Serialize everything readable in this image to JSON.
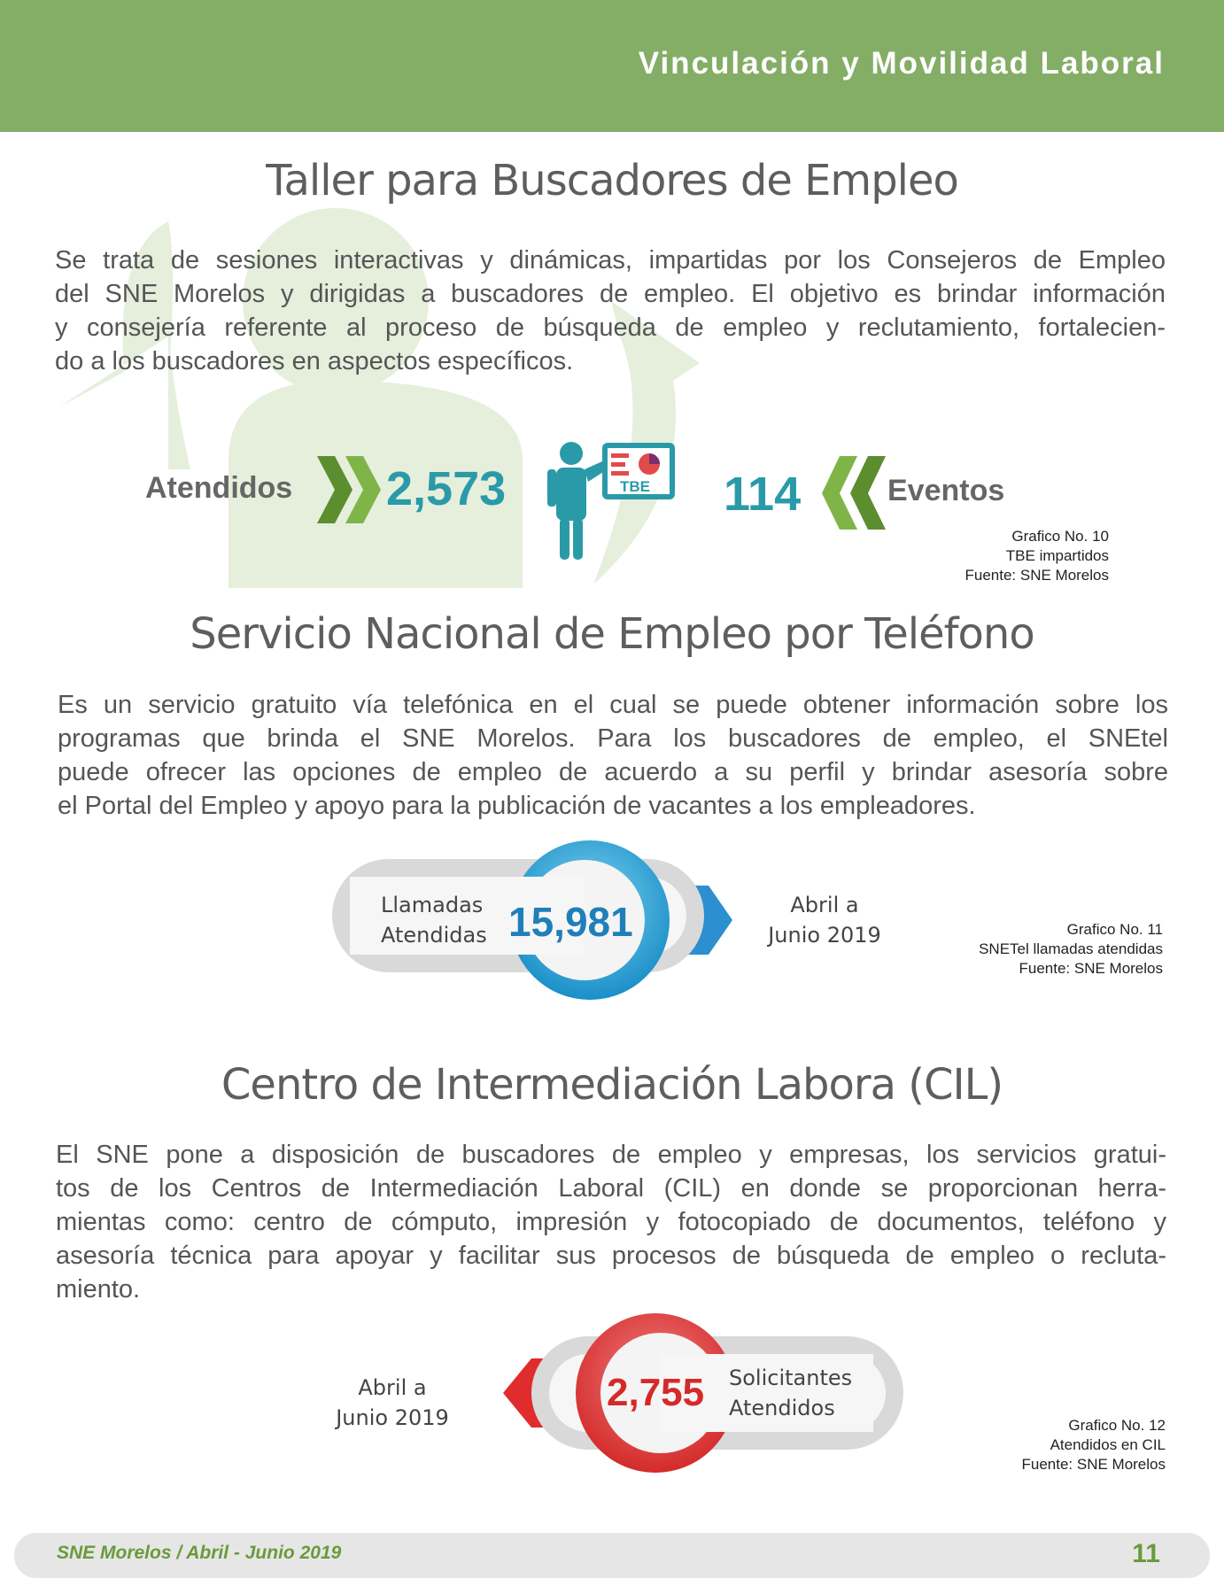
{
  "header": {
    "title": "Vinculación y Movilidad Laboral"
  },
  "section_1": {
    "title": "Taller para Buscadores de Empleo",
    "lines": [
      "Se trata de sesiones interactivas y dinámicas, impartidas por los Consejeros de Empleo",
      "del SNE Morelos y dirigidas a buscadores de empleo. El objetivo es brindar información",
      "y consejería referente al proceso de búsqueda de empleo y  reclutamiento, fortalecien-",
      "do a los buscadores en aspectos específicos."
    ],
    "label_left": "Atendidos",
    "value_left": "2,573",
    "icon_label": "TBE",
    "value_right": "114",
    "label_right": "Eventos",
    "caption": [
      "Grafico No. 10",
      "TBE impartidos",
      "Fuente: SNE Morelos"
    ]
  },
  "section_2": {
    "title": "Servicio Nacional de Empleo por Teléfono",
    "lines": [
      "Es un servicio gratuito vía telefónica en el cual se puede obtener información sobre los",
      "programas que brinda el SNE Morelos. Para los buscadores de empleo, el SNEtel",
      "puede ofrecer las opciones de empleo de acuerdo a su perfil y brindar asesoría sobre",
      "el Portal del Empleo y apoyo para la publicación de vacantes a los empleadores."
    ],
    "label": [
      "Llamadas",
      "Atendidas"
    ],
    "value": "15,981",
    "period": [
      "Abril a",
      "Junio 2019"
    ],
    "caption": [
      "Grafico No. 11",
      "SNETel  llamadas atendidas",
      "Fuente: SNE Morelos"
    ]
  },
  "section_3": {
    "title": "Centro de Intermediación Labora (CIL)",
    "lines": [
      "El SNE pone a disposición de buscadores de empleo y empresas, los servicios gratui-",
      "tos de los Centros de Intermediación Laboral (CIL) en donde se proporcionan herra-",
      "mientas como: centro de cómputo, impresión y fotocopiado de documentos, teléfono y",
      "asesoría técnica para apoyar y facilitar sus procesos de búsqueda de empleo o recluta-",
      "miento."
    ],
    "period": [
      "Abril a",
      "Junio 2019"
    ],
    "value": "2,755",
    "label": [
      "Solicitantes",
      "Atendidos"
    ],
    "caption": [
      "Grafico No. 12",
      "Atendidos en CIL",
      "Fuente: SNE Morelos"
    ]
  },
  "footer": {
    "left": "SNE Morelos  / Abril - Junio 2019",
    "page": "11"
  }
}
